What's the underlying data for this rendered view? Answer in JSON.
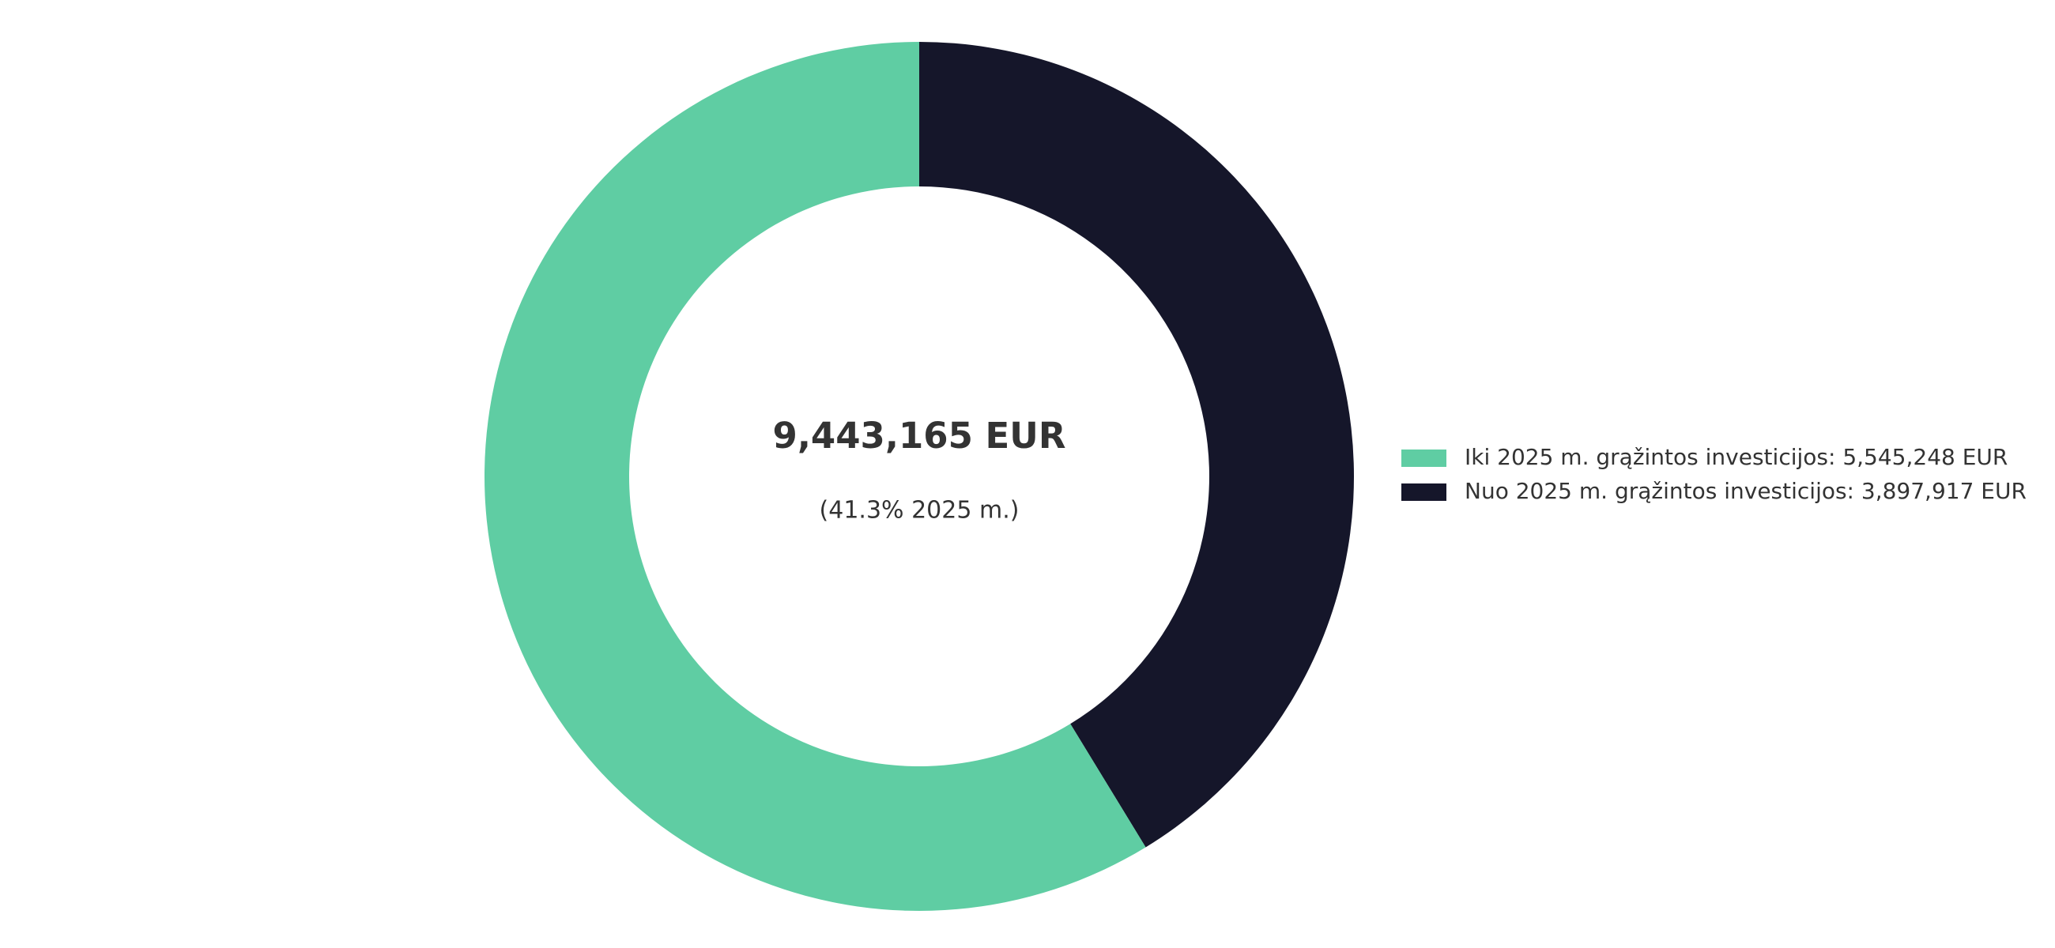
{
  "chart_data": {
    "type": "donut",
    "center_label": "9,443,165 EUR",
    "center_sublabel": "(41.3% 2025 m.)",
    "categories": [
      "Iki 2025 m. grąžintos investicijos: 5,545,248 EUR",
      "Nuo 2025 m. grąžintos investicijos: 3,897,917 EUR"
    ],
    "values": [
      5545248,
      3897917
    ],
    "colors": [
      "#5fcda3",
      "#15162a"
    ],
    "legend": "right"
  }
}
